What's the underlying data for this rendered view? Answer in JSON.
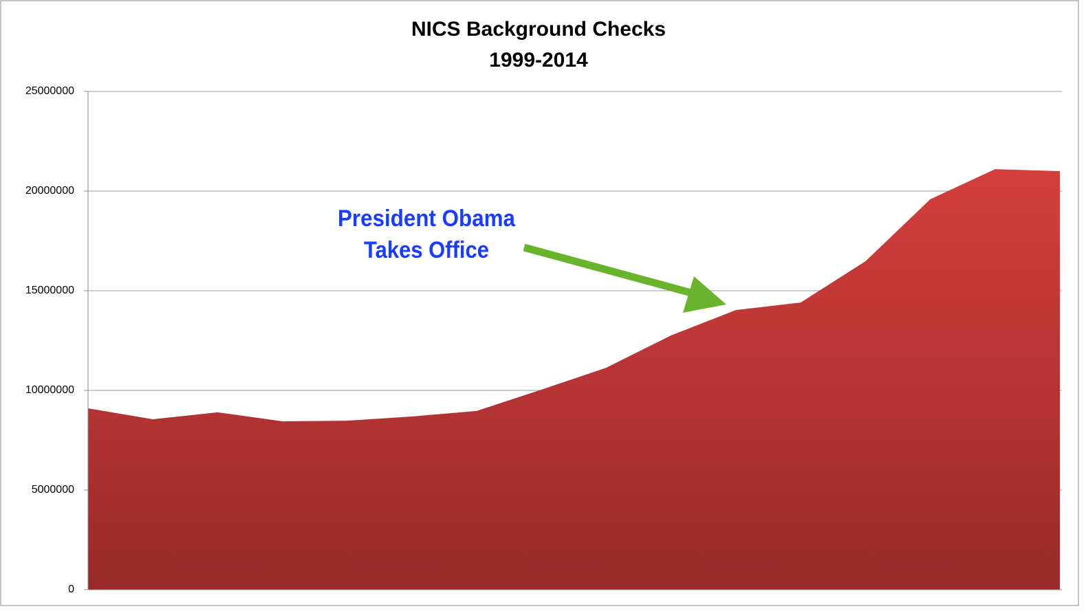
{
  "chart_data": {
    "type": "area",
    "title": "NICS Background Checks",
    "subtitle": "1999-2014",
    "categories": [
      null,
      null,
      null,
      null,
      null,
      null,
      null,
      null,
      null,
      null,
      null,
      null,
      null,
      null,
      null,
      null
    ],
    "values": [
      9100000,
      8550000,
      8900000,
      8450000,
      8480000,
      8690000,
      8970000,
      10040000,
      11140000,
      12760000,
      14030000,
      14410000,
      16480000,
      19590000,
      21100000,
      21000000
    ],
    "color": "#c23b38",
    "ylim": [
      0,
      25000000
    ],
    "yticks": [
      0,
      5000000,
      10000000,
      15000000,
      20000000,
      25000000
    ],
    "grid": true,
    "annotation": [
      "President Obama",
      "Takes Office"
    ]
  }
}
